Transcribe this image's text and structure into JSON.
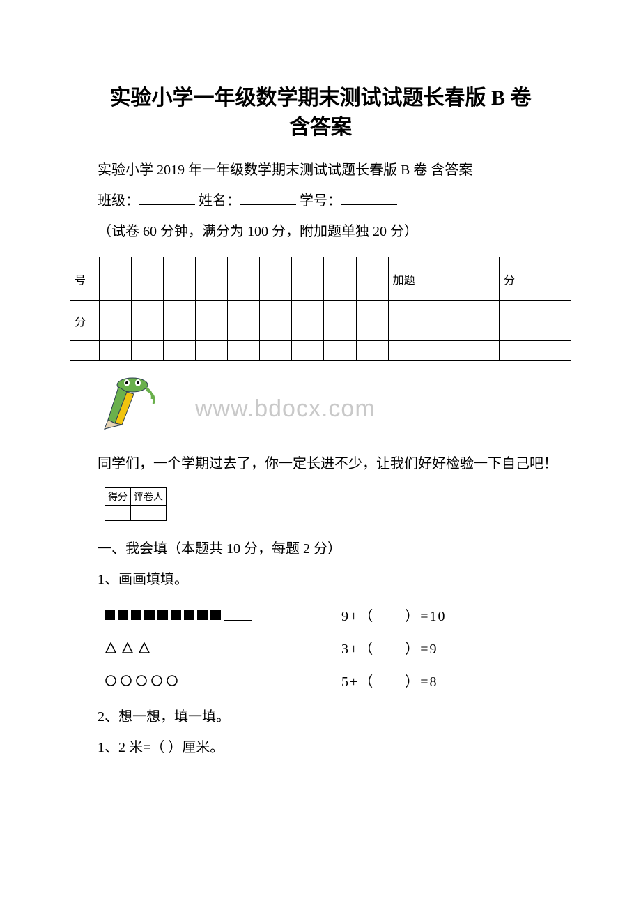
{
  "title_line1": "实验小学一年级数学期末测试试题长春版 B 卷",
  "title_line2": "含答案",
  "subtitle": "实验小学 2019 年一年级数学期末测试试题长春版 B 卷 含答案",
  "info": {
    "class_label": "班级：",
    "name_label": "姓名：",
    "id_label": "学号："
  },
  "note": "（试卷 60 分钟，满分为 100 分，附加题单独 20 分）",
  "score_table": {
    "row1_col1": "号",
    "row1_extra1": "加题",
    "row1_extra2": "分",
    "row2_col1": "分"
  },
  "watermark": "www.bdocx.com",
  "intro": "同学们，一个学期过去了，你一定长进不少，让我们好好检验一下自己吧！",
  "small_table": {
    "col1": "得分",
    "col2": "评卷人"
  },
  "section1": "一、我会填（本题共 10 分，每题 2 分）",
  "q1": "1、画画填填。",
  "shapes": {
    "row1": {
      "squares_count": 9,
      "underline_width": 40,
      "equation": "9+（　　）=10"
    },
    "row2": {
      "triangles_count": 3,
      "underline_width": 150,
      "equation": "3+（　　）=9"
    },
    "row3": {
      "circles_count": 5,
      "underline_width": 110,
      "equation": "5+（　　）=8"
    }
  },
  "q2": "2、想一想，填一填。",
  "q2_sub": "1、2 米=（ ）厘米。",
  "colors": {
    "text": "#000000",
    "background": "#ffffff",
    "watermark": "#c9c9c9",
    "pencil_green": "#6ab04c",
    "pencil_yellow": "#f1c40f",
    "pencil_dark": "#2c3e50"
  }
}
